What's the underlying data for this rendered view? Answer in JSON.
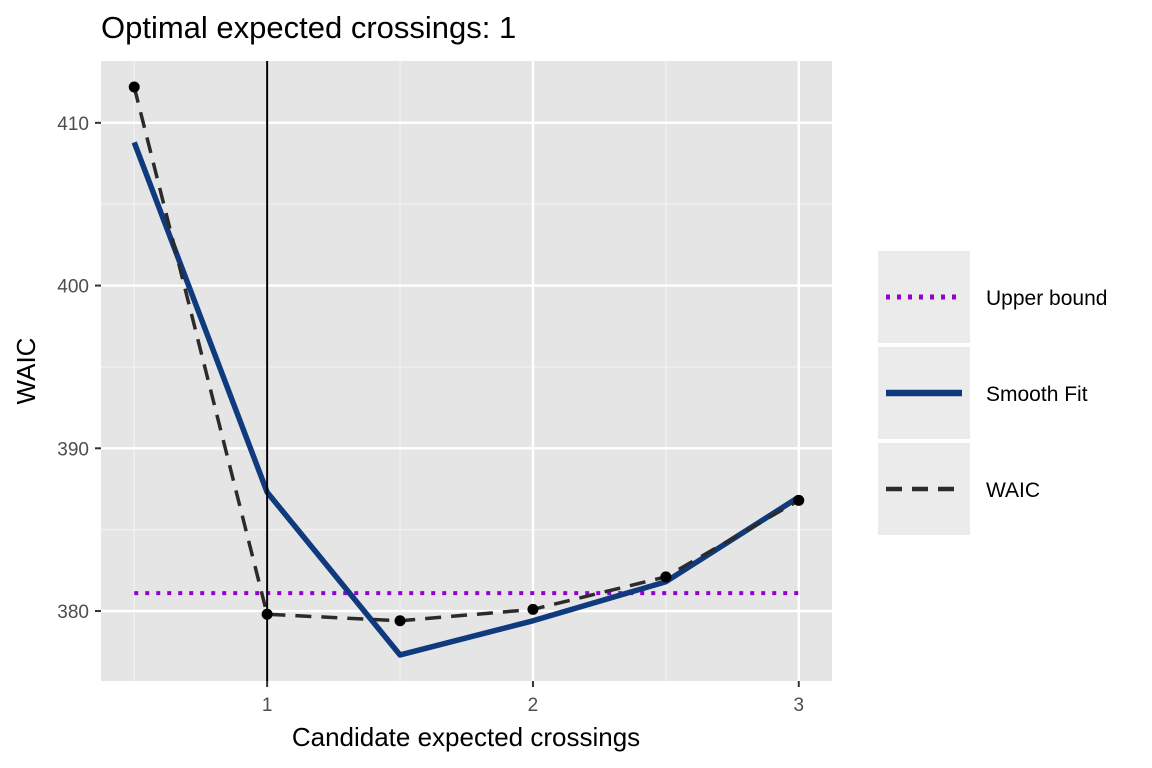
{
  "chart_data": {
    "type": "line",
    "title": "Optimal expected crossings: 1",
    "xlabel": "Candidate expected crossings",
    "ylabel": "WAIC",
    "xlim": [
      0.375,
      3.125
    ],
    "ylim": [
      375.7,
      413.8
    ],
    "x_ticks": [
      1,
      2,
      3
    ],
    "x_tick_labels": [
      "1",
      "2",
      "3"
    ],
    "y_ticks": [
      380,
      390,
      400,
      410
    ],
    "y_tick_labels": [
      "380",
      "390",
      "400",
      "410"
    ],
    "grid": true,
    "legend_position": "right",
    "vline_x": 1,
    "series": [
      {
        "name": "Upper bound",
        "style": "dotted",
        "color": "#9400D3",
        "x": [
          0.5,
          3.0
        ],
        "y": [
          381.1,
          381.1
        ]
      },
      {
        "name": "Smooth Fit",
        "style": "solid",
        "color": "#0F3A7D",
        "x": [
          0.5,
          1.0,
          1.5,
          2.0,
          2.5,
          3.0
        ],
        "y": [
          408.8,
          387.3,
          377.3,
          379.4,
          381.8,
          387.0
        ]
      },
      {
        "name": "WAIC",
        "style": "dashed",
        "color": "#2b2b2b",
        "points": true,
        "x": [
          0.5,
          1.0,
          1.5,
          2.0,
          2.5,
          3.0
        ],
        "y": [
          412.2,
          379.8,
          379.4,
          380.1,
          382.1,
          386.8
        ]
      }
    ]
  }
}
